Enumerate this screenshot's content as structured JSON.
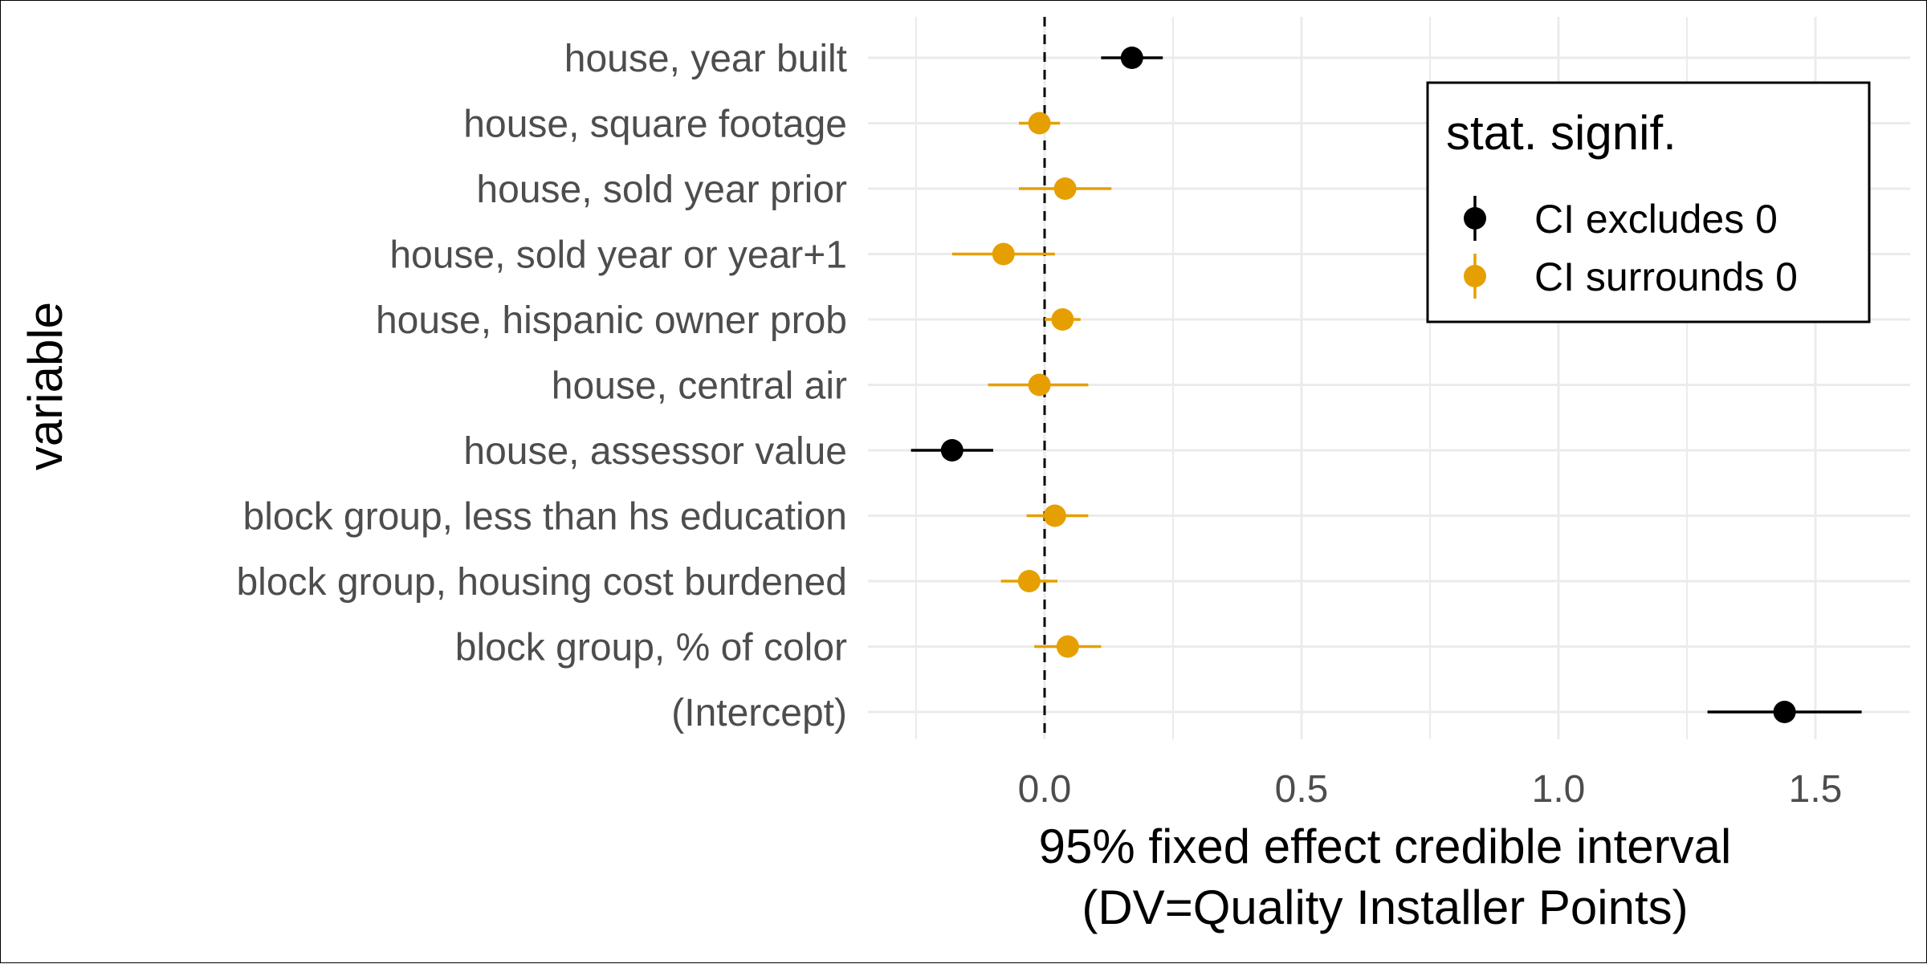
{
  "chart_data": {
    "type": "scatter",
    "subtype": "point-range (forest plot)",
    "xlabel_lines": [
      "95% fixed effect credible interval",
      "(DV=Quality Installer Points)"
    ],
    "ylabel": "variable",
    "xlim": [
      -0.25,
      1.62
    ],
    "xticks": [
      0.0,
      0.5,
      1.0,
      1.5
    ],
    "xtick_labels": [
      "0.0",
      "0.5",
      "1.0",
      "1.5"
    ],
    "reference_line": 0,
    "grid": true,
    "legend": {
      "title": "stat. signif.",
      "placement": "top-right",
      "entries": [
        {
          "label": "CI excludes 0",
          "color": "#000000"
        },
        {
          "label": "CI surrounds 0",
          "color": "#E69F00"
        }
      ]
    },
    "rows": [
      {
        "label": "house, year built",
        "estimate": 0.17,
        "low": 0.11,
        "high": 0.23,
        "signif": "CI excludes 0"
      },
      {
        "label": "house, square footage",
        "estimate": -0.01,
        "low": -0.05,
        "high": 0.03,
        "signif": "CI surrounds 0"
      },
      {
        "label": "house, sold year prior",
        "estimate": 0.04,
        "low": -0.05,
        "high": 0.13,
        "signif": "CI surrounds 0"
      },
      {
        "label": "house, sold year or year+1",
        "estimate": -0.08,
        "low": -0.18,
        "high": 0.02,
        "signif": "CI surrounds 0"
      },
      {
        "label": "house, hispanic owner prob",
        "estimate": 0.035,
        "low": 0.0,
        "high": 0.07,
        "signif": "CI surrounds 0"
      },
      {
        "label": "house, central air",
        "estimate": -0.01,
        "low": -0.11,
        "high": 0.085,
        "signif": "CI surrounds 0"
      },
      {
        "label": "house, assessor value",
        "estimate": -0.18,
        "low": -0.26,
        "high": -0.1,
        "signif": "CI excludes 0"
      },
      {
        "label": "block group, less than hs education",
        "estimate": 0.02,
        "low": -0.035,
        "high": 0.085,
        "signif": "CI surrounds 0"
      },
      {
        "label": "block group, housing cost burdened",
        "estimate": -0.03,
        "low": -0.085,
        "high": 0.025,
        "signif": "CI surrounds 0"
      },
      {
        "label": "block group, % of color",
        "estimate": 0.045,
        "low": -0.02,
        "high": 0.11,
        "signif": "CI surrounds 0"
      },
      {
        "label": "(Intercept)",
        "estimate": 1.44,
        "low": 1.29,
        "high": 1.59,
        "signif": "CI excludes 0"
      }
    ]
  }
}
